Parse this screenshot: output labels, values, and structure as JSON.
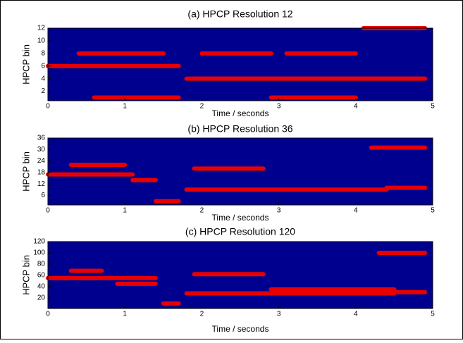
{
  "chart_data": [
    {
      "type": "heatmap",
      "title": "(a) HPCP Resolution 12",
      "xlabel": "Time / seconds",
      "ylabel": "HPCP bin",
      "xlim": [
        0,
        5
      ],
      "ylim": [
        0.5,
        12
      ],
      "xticks": [
        0,
        1,
        2,
        3,
        4,
        5
      ],
      "yticks": [
        2,
        4,
        6,
        8,
        10,
        12
      ],
      "background": "#00008f",
      "color": "#e80000",
      "ridges": [
        {
          "x": [
            0,
            1.7
          ],
          "y": [
            6,
            6
          ]
        },
        {
          "x": [
            1.8,
            4.9
          ],
          "y": [
            4,
            4
          ]
        },
        {
          "x": [
            0.6,
            1.7
          ],
          "y": [
            1,
            1
          ]
        },
        {
          "x": [
            0.4,
            1.5
          ],
          "y": [
            8,
            8
          ]
        },
        {
          "x": [
            4.1,
            4.9
          ],
          "y": [
            12,
            12
          ]
        },
        {
          "x": [
            2,
            2.9
          ],
          "y": [
            8,
            8
          ]
        },
        {
          "x": [
            3.1,
            4
          ],
          "y": [
            8,
            8
          ]
        },
        {
          "x": [
            2.9,
            4
          ],
          "y": [
            1,
            1
          ]
        }
      ]
    },
    {
      "type": "heatmap",
      "title": "(b) HPCP Resolution 36",
      "xlabel": "Time / seconds",
      "ylabel": "HPCP bin",
      "xlim": [
        0,
        5
      ],
      "ylim": [
        1,
        36
      ],
      "xticks": [
        0,
        1,
        2,
        3,
        4,
        5
      ],
      "yticks": [
        6,
        12,
        18,
        24,
        30,
        36
      ],
      "background": "#00008f",
      "color": "#e80000",
      "ridges": [
        {
          "x": [
            0,
            1.1
          ],
          "y": [
            17,
            17
          ]
        },
        {
          "x": [
            0.3,
            1
          ],
          "y": [
            22,
            22
          ]
        },
        {
          "x": [
            1.1,
            1.4
          ],
          "y": [
            14,
            14
          ]
        },
        {
          "x": [
            1.4,
            1.7
          ],
          "y": [
            3,
            3
          ]
        },
        {
          "x": [
            1.8,
            4.4
          ],
          "y": [
            9,
            9
          ]
        },
        {
          "x": [
            1.9,
            2.8
          ],
          "y": [
            20,
            20
          ]
        },
        {
          "x": [
            4.2,
            4.9
          ],
          "y": [
            31,
            31
          ]
        },
        {
          "x": [
            4.4,
            4.9
          ],
          "y": [
            10,
            10
          ]
        }
      ]
    },
    {
      "type": "heatmap",
      "title": "(c) HPCP Resolution 120",
      "xlabel": "Time / seconds",
      "ylabel": "HPCP bin",
      "xlim": [
        0,
        5
      ],
      "ylim": [
        1,
        120
      ],
      "xticks": [
        0,
        1,
        2,
        3,
        4,
        5
      ],
      "yticks": [
        20,
        40,
        60,
        80,
        100,
        120
      ],
      "background": "#00008f",
      "color": "#e80000",
      "ridges": [
        {
          "x": [
            0,
            1.4
          ],
          "y": [
            55,
            55
          ]
        },
        {
          "x": [
            0.3,
            0.7
          ],
          "y": [
            68,
            68
          ]
        },
        {
          "x": [
            0.9,
            1.4
          ],
          "y": [
            45,
            45
          ]
        },
        {
          "x": [
            1.5,
            1.7
          ],
          "y": [
            10,
            10
          ]
        },
        {
          "x": [
            1.8,
            4.5
          ],
          "y": [
            28,
            28
          ]
        },
        {
          "x": [
            2.9,
            4.5
          ],
          "y": [
            35,
            35
          ]
        },
        {
          "x": [
            1.9,
            2.8
          ],
          "y": [
            62,
            62
          ]
        },
        {
          "x": [
            4.3,
            4.9
          ],
          "y": [
            100,
            100
          ]
        },
        {
          "x": [
            4.3,
            4.9
          ],
          "y": [
            30,
            30
          ]
        }
      ]
    }
  ]
}
